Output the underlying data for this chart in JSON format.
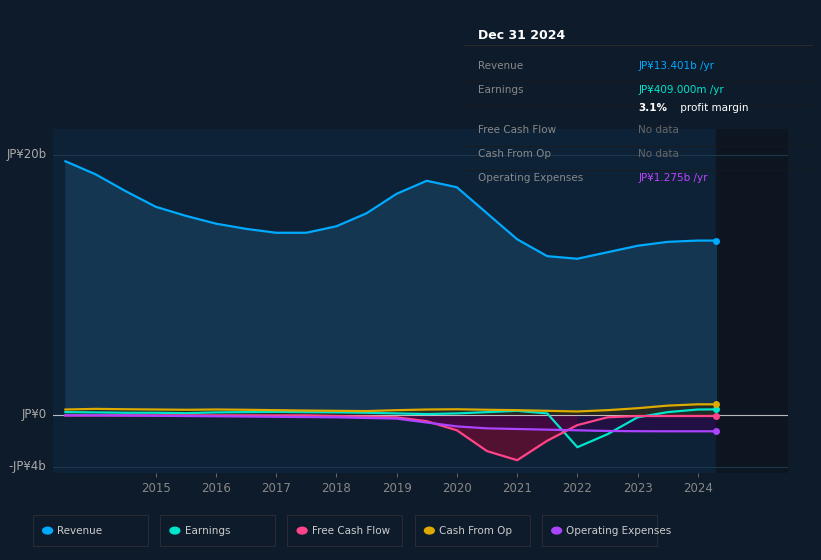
{
  "bg_color": "#0d1b2a",
  "chart_bg": "#0d2237",
  "chart_bg_right": "#111a27",
  "grid_color": "#1e3a50",
  "ylim": [
    -4500000000.0,
    22000000000.0
  ],
  "xlim": [
    2013.3,
    2025.5
  ],
  "xticks": [
    2015,
    2016,
    2017,
    2018,
    2019,
    2020,
    2021,
    2022,
    2023,
    2024
  ],
  "years": [
    2013.5,
    2014.0,
    2014.5,
    2015.0,
    2015.5,
    2016.0,
    2016.5,
    2017.0,
    2017.5,
    2018.0,
    2018.5,
    2019.0,
    2019.5,
    2020.0,
    2020.5,
    2021.0,
    2021.5,
    2022.0,
    2022.5,
    2023.0,
    2023.5,
    2024.0,
    2024.3
  ],
  "revenue": [
    19500000000.0,
    18500000000.0,
    17200000000.0,
    16000000000.0,
    15300000000.0,
    14700000000.0,
    14300000000.0,
    14000000000.0,
    14000000000.0,
    14500000000.0,
    15500000000.0,
    17000000000.0,
    18000000000.0,
    17500000000.0,
    15500000000.0,
    13500000000.0,
    12200000000.0,
    12000000000.0,
    12500000000.0,
    13000000000.0,
    13300000000.0,
    13400000000.0,
    13400000000.0
  ],
  "earnings": [
    200000000.0,
    180000000.0,
    150000000.0,
    150000000.0,
    120000000.0,
    180000000.0,
    200000000.0,
    220000000.0,
    200000000.0,
    180000000.0,
    150000000.0,
    100000000.0,
    50000000.0,
    100000000.0,
    200000000.0,
    300000000.0,
    100000000.0,
    -2500000000.0,
    -1500000000.0,
    -200000000.0,
    200000000.0,
    400000000.0,
    410000000.0
  ],
  "free_cash_flow": [
    -50000000.0,
    -50000000.0,
    -50000000.0,
    -50000000.0,
    -50000000.0,
    -50000000.0,
    -50000000.0,
    -50000000.0,
    -50000000.0,
    -100000000.0,
    -150000000.0,
    -200000000.0,
    -500000000.0,
    -1200000000.0,
    -2800000000.0,
    -3500000000.0,
    -2000000000.0,
    -800000000.0,
    -200000000.0,
    -100000000.0,
    -100000000.0,
    -100000000.0,
    -100000000.0
  ],
  "cash_from_op": [
    400000000.0,
    450000000.0,
    420000000.0,
    400000000.0,
    380000000.0,
    400000000.0,
    380000000.0,
    350000000.0,
    320000000.0,
    300000000.0,
    280000000.0,
    350000000.0,
    400000000.0,
    420000000.0,
    380000000.0,
    350000000.0,
    300000000.0,
    250000000.0,
    350000000.0,
    500000000.0,
    700000000.0,
    800000000.0,
    800000000.0
  ],
  "op_expenses": [
    -50000000.0,
    -50000000.0,
    -60000000.0,
    -80000000.0,
    -100000000.0,
    -120000000.0,
    -140000000.0,
    -160000000.0,
    -180000000.0,
    -200000000.0,
    -250000000.0,
    -300000000.0,
    -600000000.0,
    -900000000.0,
    -1050000000.0,
    -1100000000.0,
    -1150000000.0,
    -1200000000.0,
    -1250000000.0,
    -1270000000.0,
    -1275000000.0,
    -1275000000.0,
    -1275000000.0
  ],
  "revenue_color": "#00aaff",
  "revenue_fill": "#143650",
  "earnings_color": "#00e5cc",
  "earnings_fill_neg": "#1a3040",
  "free_cash_flow_color": "#ff4488",
  "fcf_fill": "#5a1030",
  "cash_from_op_color": "#ddaa00",
  "op_expenses_color": "#aa44ff",
  "legend_items": [
    {
      "label": "Revenue",
      "color": "#00aaff"
    },
    {
      "label": "Earnings",
      "color": "#00e5cc"
    },
    {
      "label": "Free Cash Flow",
      "color": "#ff4488"
    },
    {
      "label": "Cash From Op",
      "color": "#ddaa00"
    },
    {
      "label": "Operating Expenses",
      "color": "#aa44ff"
    }
  ],
  "tooltip_title": "Dec 31 2024",
  "tooltip_rows": [
    {
      "label": "Revenue",
      "value": "JP¥13.401b /yr",
      "vcolor": "#00aaff",
      "gray": false
    },
    {
      "label": "Earnings",
      "value": "JP¥409.000m /yr",
      "vcolor": "#00e5cc",
      "gray": false
    },
    {
      "label": "",
      "value": "3.1% profit margin",
      "vcolor": "#cccccc",
      "gray": false,
      "bold_num": "3.1%"
    },
    {
      "label": "Free Cash Flow",
      "value": "No data",
      "vcolor": "#666666",
      "gray": true
    },
    {
      "label": "Cash From Op",
      "value": "No data",
      "vcolor": "#666666",
      "gray": true
    },
    {
      "label": "Operating Expenses",
      "value": "JP¥1.275b /yr",
      "vcolor": "#bb44ff",
      "gray": false
    }
  ]
}
